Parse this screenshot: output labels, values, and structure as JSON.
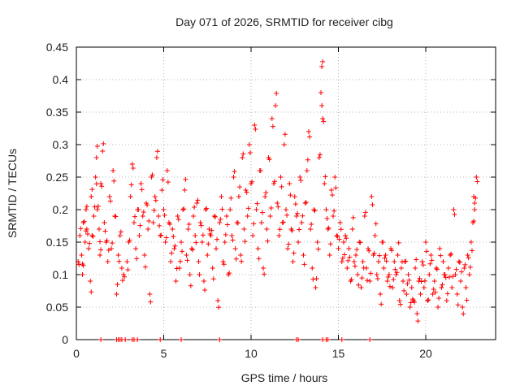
{
  "chart_data": {
    "type": "scatter",
    "title": "Day 071 of 2026, SRMTID for receiver cibg",
    "xlabel": "GPS time / hours",
    "ylabel": "SRMTID / TECUs",
    "xlim": [
      0,
      24
    ],
    "ylim": [
      0,
      0.45
    ],
    "xticks": [
      0,
      5,
      10,
      15,
      20
    ],
    "xtick_labels": [
      "0",
      "5",
      "10",
      "15",
      "20"
    ],
    "yticks": [
      0,
      0.05,
      0.1,
      0.15,
      0.2,
      0.25,
      0.3,
      0.35,
      0.4,
      0.45
    ],
    "ytick_labels": [
      "0",
      "0.05",
      "0.1",
      "0.15",
      "0.2",
      "0.25",
      "0.3",
      "0.35",
      "0.4",
      "0.45"
    ],
    "grid": true,
    "marker": "+",
    "color": "#ff0000",
    "series": [
      {
        "name": "SRMTID",
        "points": [
          [
            0.1,
            0.12
          ],
          [
            0.2,
            0.16
          ],
          [
            0.3,
            0.13
          ],
          [
            0.35,
            0.1
          ],
          [
            0.4,
            0.18
          ],
          [
            0.5,
            0.15
          ],
          [
            0.55,
            0.2
          ],
          [
            0.6,
            0.17
          ],
          [
            0.7,
            0.14
          ],
          [
            0.8,
            0.09
          ],
          [
            0.85,
            0.22
          ],
          [
            0.9,
            0.16
          ],
          [
            1.0,
            0.19
          ],
          [
            1.1,
            0.25
          ],
          [
            1.15,
            0.28
          ],
          [
            1.2,
            0.2
          ],
          [
            1.3,
            0.17
          ],
          [
            1.35,
            0.13
          ],
          [
            1.4,
            0.24
          ],
          [
            1.5,
            0.29
          ],
          [
            1.6,
            0.18
          ],
          [
            1.7,
            0.15
          ],
          [
            1.8,
            0.12
          ],
          [
            1.9,
            0.22
          ],
          [
            2.0,
            0.14
          ],
          [
            2.1,
            0.26
          ],
          [
            2.2,
            0.19
          ],
          [
            2.3,
            0.07
          ],
          [
            2.4,
            0.13
          ],
          [
            2.5,
            0.16
          ],
          [
            2.6,
            0.11
          ],
          [
            2.7,
            0.1
          ],
          [
            2.9,
            0.12
          ],
          [
            3.0,
            0.15
          ],
          [
            3.1,
            0.22
          ],
          [
            3.2,
            0.27
          ],
          [
            3.3,
            0.18
          ],
          [
            3.4,
            0.14
          ],
          [
            3.5,
            0.2
          ],
          [
            3.6,
            0.16
          ],
          [
            3.7,
            0.24
          ],
          [
            3.8,
            0.19
          ],
          [
            3.9,
            0.13
          ],
          [
            4.0,
            0.21
          ],
          [
            4.1,
            0.17
          ],
          [
            4.2,
            0.07
          ],
          [
            4.3,
            0.25
          ],
          [
            4.4,
            0.18
          ],
          [
            4.5,
            0.22
          ],
          [
            4.6,
            0.28
          ],
          [
            4.7,
            0.19
          ],
          [
            4.8,
            0.16
          ],
          [
            4.9,
            0.23
          ],
          [
            5.0,
            0.2
          ],
          [
            5.1,
            0.15
          ],
          [
            5.2,
            0.26
          ],
          [
            5.3,
            0.18
          ],
          [
            5.4,
            0.12
          ],
          [
            5.5,
            0.17
          ],
          [
            5.6,
            0.14
          ],
          [
            5.7,
            0.09
          ],
          [
            5.8,
            0.19
          ],
          [
            5.9,
            0.11
          ],
          [
            6.0,
            0.15
          ],
          [
            6.1,
            0.2
          ],
          [
            6.2,
            0.23
          ],
          [
            6.3,
            0.13
          ],
          [
            6.4,
            0.17
          ],
          [
            6.5,
            0.1
          ],
          [
            6.6,
            0.14
          ],
          [
            6.7,
            0.19
          ],
          [
            6.8,
            0.16
          ],
          [
            6.9,
            0.21
          ],
          [
            7.0,
            0.12
          ],
          [
            7.1,
            0.18
          ],
          [
            7.2,
            0.15
          ],
          [
            7.3,
            0.09
          ],
          [
            7.4,
            0.2
          ],
          [
            7.5,
            0.13
          ],
          [
            7.6,
            0.17
          ],
          [
            7.7,
            0.16
          ],
          [
            7.8,
            0.11
          ],
          [
            7.9,
            0.19
          ],
          [
            8.0,
            0.14
          ],
          [
            8.1,
            0.06
          ],
          [
            8.2,
            0.18
          ],
          [
            8.3,
            0.22
          ],
          [
            8.4,
            0.12
          ],
          [
            8.5,
            0.15
          ],
          [
            8.6,
            0.19
          ],
          [
            8.7,
            0.1
          ],
          [
            8.8,
            0.2
          ],
          [
            8.9,
            0.16
          ],
          [
            9.0,
            0.25
          ],
          [
            9.1,
            0.14
          ],
          [
            9.2,
            0.18
          ],
          [
            9.3,
            0.22
          ],
          [
            9.4,
            0.13
          ],
          [
            9.5,
            0.28
          ],
          [
            9.6,
            0.17
          ],
          [
            9.7,
            0.23
          ],
          [
            9.8,
            0.19
          ],
          [
            9.9,
            0.3
          ],
          [
            10.0,
            0.24
          ],
          [
            10.1,
            0.16
          ],
          [
            10.2,
            0.33
          ],
          [
            10.3,
            0.2
          ],
          [
            10.4,
            0.14
          ],
          [
            10.5,
            0.26
          ],
          [
            10.6,
            0.18
          ],
          [
            10.7,
            0.11
          ],
          [
            10.8,
            0.22
          ],
          [
            10.9,
            0.17
          ],
          [
            11.0,
            0.28
          ],
          [
            11.1,
            0.19
          ],
          [
            11.2,
            0.34
          ],
          [
            11.3,
            0.24
          ],
          [
            11.4,
            0.36
          ],
          [
            11.5,
            0.21
          ],
          [
            11.6,
            0.16
          ],
          [
            11.7,
            0.25
          ],
          [
            11.8,
            0.18
          ],
          [
            11.9,
            0.3
          ],
          [
            12.0,
            0.2
          ],
          [
            12.1,
            0.14
          ],
          [
            12.2,
            0.24
          ],
          [
            12.3,
            0.17
          ],
          [
            12.4,
            0.12
          ],
          [
            12.5,
            0.22
          ],
          [
            12.6,
            0.19
          ],
          [
            12.7,
            0.15
          ],
          [
            12.8,
            0.25
          ],
          [
            12.9,
            0.18
          ],
          [
            13.0,
            0.13
          ],
          [
            13.1,
            0.21
          ],
          [
            13.2,
            0.26
          ],
          [
            13.3,
            0.32
          ],
          [
            13.4,
            0.17
          ],
          [
            13.5,
            0.11
          ],
          [
            13.6,
            0.2
          ],
          [
            13.7,
            0.08
          ],
          [
            13.8,
            0.15
          ],
          [
            13.9,
            0.28
          ],
          [
            14.0,
            0.38
          ],
          [
            14.05,
            0.42
          ],
          [
            14.1,
            0.34
          ],
          [
            14.2,
            0.24
          ],
          [
            14.3,
            0.2
          ],
          [
            14.4,
            0.17
          ],
          [
            14.5,
            0.13
          ],
          [
            14.6,
            0.23
          ],
          [
            14.7,
            0.19
          ],
          [
            14.8,
            0.25
          ],
          [
            14.9,
            0.16
          ],
          [
            15.0,
            0.14
          ],
          [
            15.1,
            0.18
          ],
          [
            15.2,
            0.12
          ],
          [
            15.3,
            0.15
          ],
          [
            15.4,
            0.16
          ],
          [
            15.5,
            0.11
          ],
          [
            15.6,
            0.14
          ],
          [
            15.7,
            0.09
          ],
          [
            15.8,
            0.17
          ],
          [
            15.9,
            0.12
          ],
          [
            16.0,
            0.13
          ],
          [
            16.1,
            0.1
          ],
          [
            16.2,
            0.15
          ],
          [
            16.3,
            0.08
          ],
          [
            16.4,
            0.12
          ],
          [
            16.5,
            0.19
          ],
          [
            16.6,
            0.11
          ],
          [
            16.7,
            0.14
          ],
          [
            16.8,
            0.09
          ],
          [
            16.9,
            0.22
          ],
          [
            17.0,
            0.13
          ],
          [
            17.1,
            0.16
          ],
          [
            17.2,
            0.1
          ],
          [
            17.3,
            0.12
          ],
          [
            17.4,
            0.07
          ],
          [
            17.5,
            0.15
          ],
          [
            17.6,
            0.11
          ],
          [
            17.7,
            0.13
          ],
          [
            17.8,
            0.09
          ],
          [
            17.9,
            0.1
          ],
          [
            18.0,
            0.14
          ],
          [
            18.1,
            0.08
          ],
          [
            18.2,
            0.12
          ],
          [
            18.3,
            0.1
          ],
          [
            18.4,
            0.13
          ],
          [
            18.5,
            0.06
          ],
          [
            18.6,
            0.11
          ],
          [
            18.7,
            0.09
          ],
          [
            18.8,
            0.12
          ],
          [
            18.9,
            0.07
          ],
          [
            19.0,
            0.1
          ],
          [
            19.1,
            0.05
          ],
          [
            19.2,
            0.08
          ],
          [
            19.3,
            0.06
          ],
          [
            19.4,
            0.11
          ],
          [
            19.5,
            0.04
          ],
          [
            19.6,
            0.09
          ],
          [
            19.7,
            0.07
          ],
          [
            19.8,
            0.12
          ],
          [
            19.9,
            0.08
          ],
          [
            20.0,
            0.15
          ],
          [
            20.1,
            0.06
          ],
          [
            20.2,
            0.1
          ],
          [
            20.3,
            0.13
          ],
          [
            20.4,
            0.07
          ],
          [
            20.5,
            0.09
          ],
          [
            20.6,
            0.11
          ],
          [
            20.7,
            0.05
          ],
          [
            20.8,
            0.14
          ],
          [
            20.9,
            0.08
          ],
          [
            21.0,
            0.12
          ],
          [
            21.1,
            0.1
          ],
          [
            21.2,
            0.06
          ],
          [
            21.3,
            0.11
          ],
          [
            21.4,
            0.13
          ],
          [
            21.5,
            0.08
          ],
          [
            21.6,
            0.2
          ],
          [
            21.7,
            0.1
          ],
          [
            21.8,
            0.07
          ],
          [
            21.9,
            0.12
          ],
          [
            22.0,
            0.09
          ],
          [
            22.1,
            0.05
          ],
          [
            22.2,
            0.11
          ],
          [
            22.3,
            0.08
          ],
          [
            22.4,
            0.13
          ],
          [
            22.5,
            0.1
          ],
          [
            22.6,
            0.15
          ],
          [
            22.7,
            0.18
          ],
          [
            22.75,
            0.22
          ],
          [
            22.8,
            0.2
          ],
          [
            22.9,
            0.25
          ]
        ]
      }
    ],
    "zero_markers": [
      1.4,
      2.3,
      2.4,
      2.5,
      2.6,
      2.8,
      3.2,
      3.3,
      3.5,
      4.8,
      6.0,
      8.2,
      12.6,
      12.7,
      14.1,
      14.3,
      14.4,
      15.2,
      16.8
    ]
  }
}
